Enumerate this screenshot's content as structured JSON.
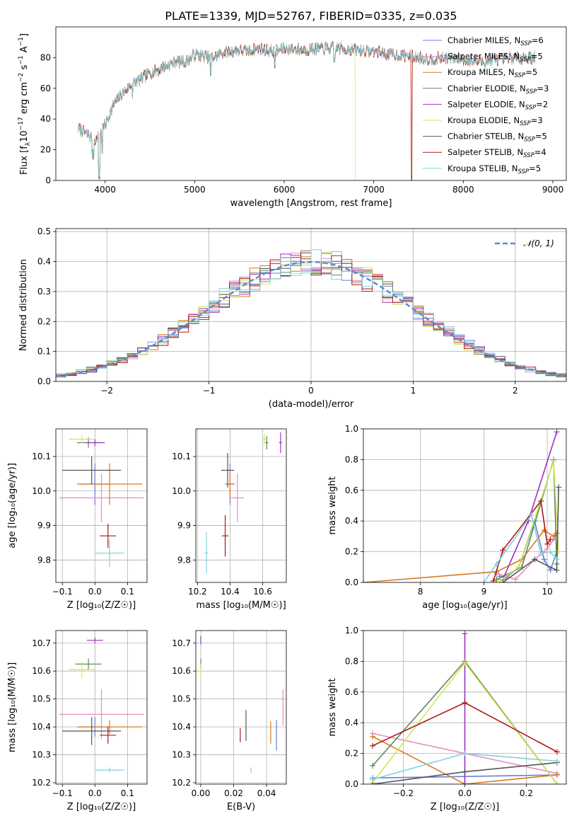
{
  "colors": {
    "Chabrier MILES": "#6a7fd9",
    "Salpeter MILES": "#e98bbf",
    "Kroupa MILES": "#d9791f",
    "Chabrier ELODIE": "#5c8a5c",
    "Salpeter ELODIE": "#9a35b8",
    "Kroupa ELODIE": "#d3e65a",
    "Chabrier STELIB": "#555555",
    "Salpeter STELIB": "#b01818",
    "Kroupa STELIB": "#7fd3dc",
    "normal_curve": "#5b8bd0",
    "grid": "#b0b0b0"
  },
  "chart_data": [
    {
      "id": "spectrum",
      "type": "line",
      "title": "PLATE=1339, MJD=52767, FIBERID=0335, z=0.035",
      "xlabel": "wavelength [Angstrom, rest frame]",
      "ylabel_pre": "Flux [f",
      "ylabel_sub": "λ",
      "ylabel_mid": "10",
      "ylabel_sup1": "−17",
      "ylabel_mid2": " erg cm",
      "ylabel_sup2": "−2",
      "ylabel_mid3": " s",
      "ylabel_sup3": "−1",
      "ylabel_end": " A",
      "ylabel_sup4": "−1",
      "ylabel_close": "]",
      "xlim": [
        3450,
        9150
      ],
      "ylim": [
        0,
        100
      ],
      "xticks": [
        4000,
        5000,
        6000,
        7000,
        8000,
        9000
      ],
      "yticks": [
        0,
        20,
        40,
        60,
        80
      ],
      "grid": false,
      "envelope": {
        "x": [
          3700,
          3800,
          3900,
          4000,
          4100,
          4200,
          4300,
          4400,
          4500,
          4600,
          4700,
          4800,
          4900,
          5000,
          5100,
          5200,
          5300,
          5400,
          5500,
          5600,
          5700,
          5800,
          5900,
          6000,
          6200,
          6400,
          6600,
          6800,
          7000,
          7200,
          7400,
          7600,
          7800,
          8000,
          8200,
          8400,
          8600,
          8800
        ],
        "y": [
          34,
          30,
          26,
          36,
          50,
          57,
          63,
          66,
          70,
          72,
          75,
          78,
          77,
          82,
          81,
          80,
          83,
          84,
          85,
          84,
          86,
          85,
          84,
          86,
          85,
          86,
          86,
          85,
          84,
          82,
          81,
          79,
          80,
          79,
          77,
          79,
          80,
          80
        ]
      },
      "series": [
        {
          "name": "Chabrier MILES",
          "nssp": "6"
        },
        {
          "name": "Salpeter MILES",
          "nssp": "5"
        },
        {
          "name": "Kroupa MILES",
          "nssp": "5"
        },
        {
          "name": "Chabrier ELODIE",
          "nssp": "3"
        },
        {
          "name": "Salpeter ELODIE",
          "nssp": "2"
        },
        {
          "name": "Kroupa ELODIE",
          "nssp": "3"
        },
        {
          "name": "Chabrier STELIB",
          "nssp": "5"
        },
        {
          "name": "Salpeter STELIB",
          "nssp": "4"
        },
        {
          "name": "Kroupa STELIB",
          "nssp": "5"
        }
      ],
      "legend_position": "top-right"
    },
    {
      "id": "residuals",
      "type": "histogram",
      "xlabel": "(data-model)/error",
      "ylabel": "Normed distribution",
      "xlim": [
        -2.5,
        2.5
      ],
      "ylim": [
        0,
        0.51
      ],
      "xticks": [
        -2,
        -1,
        0,
        1,
        2
      ],
      "yticks": [
        0.0,
        0.1,
        0.2,
        0.3,
        0.4,
        0.5
      ],
      "bin_width": 0.1,
      "grid": true,
      "normal_label": "𝒩(0, 1)",
      "legend_position": "top-right"
    },
    {
      "id": "age_vs_Z",
      "type": "errorbar",
      "xlabel": "Z [log₁₀(Z/Z☉)]",
      "ylabel": "age  [log₁₀(age/yr)]",
      "xlim": [
        -0.12,
        0.16
      ],
      "ylim": [
        9.735,
        10.18
      ],
      "xticks": [
        -0.1,
        0.0,
        0.1
      ],
      "yticks": [
        9.8,
        9.9,
        10.0,
        10.1
      ],
      "grid": true,
      "points": [
        {
          "model": "Chabrier MILES",
          "x": 0.0,
          "xerr": 0.045,
          "y": 10.02,
          "yerr": 0.06
        },
        {
          "model": "Salpeter MILES",
          "x": 0.02,
          "xerr": 0.13,
          "y": 9.98,
          "yerr": 0.07
        },
        {
          "model": "Kroupa MILES",
          "x": 0.045,
          "xerr": 0.1,
          "y": 10.02,
          "yerr": 0.06
        },
        {
          "model": "Chabrier ELODIE",
          "x": -0.02,
          "xerr": 0.035,
          "y": 10.14,
          "yerr": 0.015
        },
        {
          "model": "Salpeter ELODIE",
          "x": 0.0,
          "xerr": 0.03,
          "y": 10.14,
          "yerr": 0.01
        },
        {
          "model": "Kroupa ELODIE",
          "x": -0.04,
          "xerr": 0.04,
          "y": 10.15,
          "yerr": 0.012
        },
        {
          "model": "Chabrier STELIB",
          "x": -0.01,
          "xerr": 0.09,
          "y": 10.06,
          "yerr": 0.04
        },
        {
          "model": "Salpeter STELIB",
          "x": 0.04,
          "xerr": 0.025,
          "y": 9.87,
          "yerr": 0.035
        },
        {
          "model": "Kroupa STELIB",
          "x": 0.045,
          "xerr": 0.045,
          "y": 9.82,
          "yerr": 0.04
        }
      ]
    },
    {
      "id": "age_vs_mass",
      "type": "errorbar",
      "xlabel": "mass [log₁₀(M/M☉)]",
      "ylabel": "",
      "xlim": [
        10.19,
        10.745
      ],
      "ylim": [
        9.735,
        10.18
      ],
      "xticks": [
        10.2,
        10.4,
        10.6
      ],
      "yticks": [
        9.8,
        9.9,
        10.0,
        10.1
      ],
      "grid": true,
      "points": [
        {
          "model": "Chabrier MILES",
          "x": 10.4,
          "xerr": 0.03,
          "y": 10.02,
          "yerr": 0.06
        },
        {
          "model": "Salpeter MILES",
          "x": 10.445,
          "xerr": 0.04,
          "y": 9.98,
          "yerr": 0.07
        },
        {
          "model": "Kroupa MILES",
          "x": 10.4,
          "xerr": 0.025,
          "y": 10.02,
          "yerr": 0.04
        },
        {
          "model": "Chabrier ELODIE",
          "x": 10.625,
          "xerr": 0.01,
          "y": 10.14,
          "yerr": 0.02
        },
        {
          "model": "Salpeter ELODIE",
          "x": 10.71,
          "xerr": 0.01,
          "y": 10.14,
          "yerr": 0.03
        },
        {
          "model": "Kroupa ELODIE",
          "x": 10.61,
          "xerr": 0.01,
          "y": 10.15,
          "yerr": 0.015
        },
        {
          "model": "Chabrier STELIB",
          "x": 10.385,
          "xerr": 0.04,
          "y": 10.06,
          "yerr": 0.05
        },
        {
          "model": "Salpeter STELIB",
          "x": 10.37,
          "xerr": 0.02,
          "y": 9.87,
          "yerr": 0.06
        },
        {
          "model": "Kroupa STELIB",
          "x": 10.255,
          "xerr": 0.01,
          "y": 9.82,
          "yerr": 0.06
        }
      ]
    },
    {
      "id": "weight_vs_age",
      "type": "line",
      "xlabel": "age  [log₁₀(age/yr)]",
      "ylabel": "mass weight",
      "xlim": [
        7.1,
        10.3
      ],
      "ylim": [
        0,
        1.0
      ],
      "xticks": [
        8,
        9,
        10
      ],
      "yticks": [
        0.0,
        0.2,
        0.4,
        0.6,
        0.8,
        1.0
      ],
      "grid": true,
      "series": [
        {
          "name": "Chabrier MILES",
          "x": [
            9.25,
            9.35,
            9.55,
            9.8,
            9.95,
            10.05,
            10.15
          ],
          "y": [
            0.04,
            0.03,
            0.1,
            0.4,
            0.15,
            0.08,
            0.2
          ]
        },
        {
          "name": "Salpeter MILES",
          "x": [
            9.2,
            9.5,
            9.8,
            10.0,
            10.1,
            10.15
          ],
          "y": [
            0.06,
            0.02,
            0.15,
            0.22,
            0.28,
            0.32
          ]
        },
        {
          "name": "Kroupa MILES",
          "x": [
            7.1,
            9.2,
            9.6,
            9.95,
            10.1,
            10.15
          ],
          "y": [
            0.0,
            0.07,
            0.15,
            0.34,
            0.3,
            0.32
          ]
        },
        {
          "name": "Chabrier ELODIE",
          "x": [
            9.2,
            9.6,
            10.1,
            10.15
          ],
          "y": [
            0.02,
            0.1,
            0.8,
            0.12
          ]
        },
        {
          "name": "Salpeter ELODIE",
          "x": [
            9.3,
            9.7,
            10.15
          ],
          "y": [
            0.02,
            0.4,
            0.98
          ]
        },
        {
          "name": "Kroupa ELODIE",
          "x": [
            9.25,
            9.55,
            10.1,
            10.18
          ],
          "y": [
            0.01,
            0.1,
            0.79,
            0.2
          ]
        },
        {
          "name": "Chabrier STELIB",
          "x": [
            9.3,
            9.8,
            10.15,
            10.18
          ],
          "y": [
            0.0,
            0.15,
            0.08,
            0.62
          ]
        },
        {
          "name": "Salpeter STELIB",
          "x": [
            9.15,
            9.3,
            9.9,
            10.0,
            10.05
          ],
          "y": [
            0.01,
            0.21,
            0.53,
            0.25,
            0.28
          ]
        },
        {
          "name": "Kroupa STELIB",
          "x": [
            9.0,
            9.2,
            9.75,
            9.9,
            10.05,
            10.15
          ],
          "y": [
            0.0,
            0.12,
            0.44,
            0.19,
            0.2,
            0.15
          ]
        }
      ]
    },
    {
      "id": "mass_vs_Z",
      "type": "errorbar",
      "xlabel": "Z [log₁₀(Z/Z☉)]",
      "ylabel": "mass [log₁₀(M/M☉)]",
      "xlim": [
        -0.12,
        0.16
      ],
      "ylim": [
        10.195,
        10.745
      ],
      "xticks": [
        -0.1,
        0.0,
        0.1
      ],
      "yticks": [
        10.2,
        10.3,
        10.4,
        10.5,
        10.6,
        10.7
      ],
      "grid": true,
      "points": [
        {
          "model": "Chabrier MILES",
          "x": 0.0,
          "xerr": 0.05,
          "y": 10.4,
          "yerr": 0.035
        },
        {
          "model": "Salpeter MILES",
          "x": 0.02,
          "xerr": 0.13,
          "y": 10.445,
          "yerr": 0.09
        },
        {
          "model": "Kroupa MILES",
          "x": 0.045,
          "xerr": 0.1,
          "y": 10.4,
          "yerr": 0.025
        },
        {
          "model": "Chabrier ELODIE",
          "x": -0.02,
          "xerr": 0.04,
          "y": 10.625,
          "yerr": 0.02
        },
        {
          "model": "Salpeter ELODIE",
          "x": 0.0,
          "xerr": 0.025,
          "y": 10.71,
          "yerr": 0.01
        },
        {
          "model": "Kroupa ELODIE",
          "x": -0.04,
          "xerr": 0.04,
          "y": 10.605,
          "yerr": 0.03
        },
        {
          "model": "Chabrier STELIB",
          "x": -0.01,
          "xerr": 0.09,
          "y": 10.385,
          "yerr": 0.05
        },
        {
          "model": "Salpeter STELIB",
          "x": 0.04,
          "xerr": 0.025,
          "y": 10.37,
          "yerr": 0.03
        },
        {
          "model": "Kroupa STELIB",
          "x": 0.045,
          "xerr": 0.045,
          "y": 10.245,
          "yerr": 0.01
        }
      ]
    },
    {
      "id": "mass_vs_ebv",
      "type": "errorbar",
      "xlabel": "E(B-V)",
      "ylabel": "",
      "xlim": [
        -0.003,
        0.052
      ],
      "ylim": [
        10.195,
        10.745
      ],
      "xticks": [
        0.0,
        0.02,
        0.04
      ],
      "yticks": [
        10.2,
        10.3,
        10.4,
        10.5,
        10.6,
        10.7
      ],
      "grid": true,
      "points": [
        {
          "model": "Chabrier MILES",
          "x": 0.046,
          "xerr": 0.0,
          "y": 10.37,
          "yerr": 0.055
        },
        {
          "model": "Salpeter MILES",
          "x": 0.05,
          "xerr": 0.0,
          "y": 10.47,
          "yerr": 0.065
        },
        {
          "model": "Kroupa MILES",
          "x": 0.0425,
          "xerr": 0.0,
          "y": 10.38,
          "yerr": 0.04
        },
        {
          "model": "Chabrier ELODIE",
          "x": 0.0,
          "xerr": 0.0,
          "y": 10.625,
          "yerr": 0.02
        },
        {
          "model": "Salpeter ELODIE",
          "x": 0.0,
          "xerr": 0.0,
          "y": 10.71,
          "yerr": 0.015
        },
        {
          "model": "Kroupa ELODIE",
          "x": 0.0,
          "xerr": 0.0,
          "y": 10.605,
          "yerr": 0.02
        },
        {
          "model": "Chabrier STELIB",
          "x": 0.0275,
          "xerr": 0.0,
          "y": 10.405,
          "yerr": 0.055
        },
        {
          "model": "Salpeter STELIB",
          "x": 0.024,
          "xerr": 0.0,
          "y": 10.37,
          "yerr": 0.025
        },
        {
          "model": "Kroupa STELIB",
          "x": 0.0305,
          "xerr": 0.0,
          "y": 10.245,
          "yerr": 0.01
        }
      ]
    },
    {
      "id": "weight_vs_Z",
      "type": "line",
      "xlabel": "Z [log₁₀(Z/Z☉)]",
      "ylabel": "mass weight",
      "xlim": [
        -0.33,
        0.33
      ],
      "ylim": [
        0,
        1.0
      ],
      "xticks": [
        -0.2,
        0.0,
        0.2
      ],
      "yticks": [
        0.0,
        0.2,
        0.4,
        0.6,
        0.8,
        1.0
      ],
      "grid": true,
      "series": [
        {
          "name": "Chabrier MILES",
          "x": [
            -0.3,
            0.0,
            0.3
          ],
          "y": [
            0.04,
            0.05,
            0.06
          ]
        },
        {
          "name": "Salpeter MILES",
          "x": [
            -0.3,
            0.0,
            0.3
          ],
          "y": [
            0.33,
            0.2,
            0.07
          ]
        },
        {
          "name": "Kroupa MILES",
          "x": [
            -0.3,
            0.0,
            0.3
          ],
          "y": [
            0.31,
            0.0,
            0.06
          ]
        },
        {
          "name": "Chabrier ELODIE",
          "x": [
            -0.3,
            0.0,
            0.3
          ],
          "y": [
            0.12,
            0.8,
            0.0
          ]
        },
        {
          "name": "Salpeter ELODIE",
          "x": [
            0.0,
            0.0
          ],
          "y": [
            0.0,
            0.98
          ]
        },
        {
          "name": "Kroupa ELODIE",
          "x": [
            -0.3,
            0.0,
            0.3
          ],
          "y": [
            0.01,
            0.79,
            0.0
          ]
        },
        {
          "name": "Chabrier STELIB",
          "x": [
            -0.3,
            0.0,
            0.3
          ],
          "y": [
            0.0,
            0.08,
            0.14
          ]
        },
        {
          "name": "Salpeter STELIB",
          "x": [
            -0.3,
            0.0,
            0.3
          ],
          "y": [
            0.25,
            0.53,
            0.21
          ]
        },
        {
          "name": "Kroupa STELIB",
          "x": [
            -0.3,
            0.0,
            0.3
          ],
          "y": [
            0.03,
            0.2,
            0.15
          ]
        }
      ]
    }
  ]
}
